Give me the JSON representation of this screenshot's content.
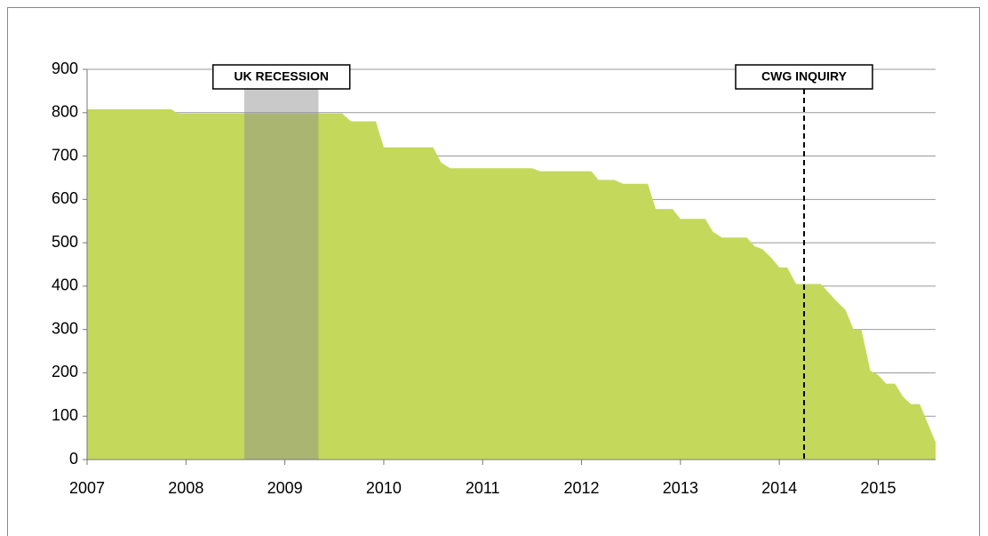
{
  "chart_data": {
    "type": "area",
    "color": "#c4d95b",
    "x": [
      2007.0,
      2007.85,
      2007.92,
      2009.58,
      2009.67,
      2009.92,
      2010.0,
      2010.5,
      2010.58,
      2010.67,
      2011.5,
      2011.58,
      2012.1,
      2012.17,
      2012.33,
      2012.42,
      2012.67,
      2012.75,
      2012.92,
      2013.0,
      2013.25,
      2013.33,
      2013.42,
      2013.67,
      2013.75,
      2013.83,
      2013.92,
      2014.0,
      2014.08,
      2014.17,
      2014.42,
      2014.5,
      2014.58,
      2014.67,
      2014.75,
      2014.83,
      2014.92,
      2015.0,
      2015.08,
      2015.17,
      2015.25,
      2015.33,
      2015.42,
      2015.58
    ],
    "values": [
      808,
      808,
      798,
      798,
      780,
      780,
      720,
      720,
      685,
      672,
      672,
      665,
      665,
      645,
      645,
      636,
      636,
      578,
      578,
      555,
      555,
      525,
      512,
      512,
      492,
      485,
      465,
      443,
      443,
      405,
      405,
      385,
      365,
      345,
      300,
      300,
      205,
      195,
      175,
      175,
      145,
      128,
      128,
      40
    ],
    "xlim": [
      2007,
      2015.58
    ],
    "xticks": [
      2007,
      2008,
      2009,
      2010,
      2011,
      2012,
      2013,
      2014,
      2015
    ],
    "ylim": [
      0,
      900
    ],
    "yticks": [
      0,
      100,
      200,
      300,
      400,
      500,
      600,
      700,
      800,
      900
    ],
    "grid": true,
    "annotations": [
      {
        "label": "UK RECESSION",
        "x_start": 2008.59,
        "x_end": 2009.34
      },
      {
        "label": "CWG INQUIRY",
        "x": 2014.25
      }
    ]
  }
}
